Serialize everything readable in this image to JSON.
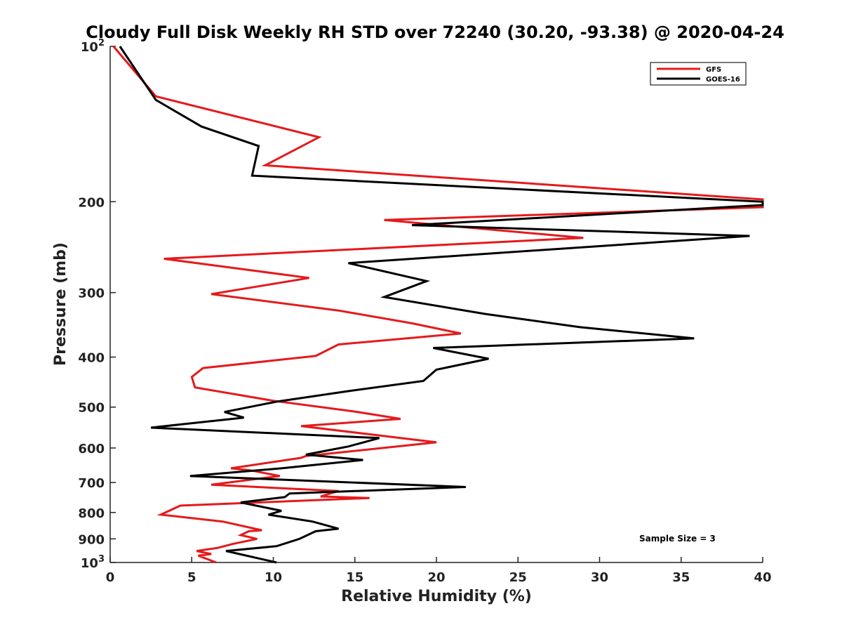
{
  "chart_data": {
    "type": "line",
    "title": "Cloudy Full Disk Weekly RH STD over 72240 (30.20, -93.38) @ 2020-04-24",
    "xlabel": "Relative Humidity (%)",
    "ylabel": "Pressure (mb)",
    "xlim": [
      0,
      40
    ],
    "ylim": [
      100,
      1000
    ],
    "yscale": "log",
    "y_reversed": true,
    "grid": false,
    "x_ticks": [
      0,
      5,
      10,
      15,
      20,
      25,
      30,
      35,
      40
    ],
    "x_tick_labels": [
      "0",
      "5",
      "10",
      "15",
      "20",
      "25",
      "30",
      "35",
      "40"
    ],
    "y_ticks": [
      100,
      200,
      300,
      400,
      500,
      600,
      700,
      800,
      900,
      1000
    ],
    "y_tick_labels": [
      {
        "base": "10",
        "sup": "2"
      },
      {
        "base": "200",
        "sup": ""
      },
      {
        "base": "300",
        "sup": ""
      },
      {
        "base": "400",
        "sup": ""
      },
      {
        "base": "500",
        "sup": ""
      },
      {
        "base": "600",
        "sup": ""
      },
      {
        "base": "700",
        "sup": ""
      },
      {
        "base": "800",
        "sup": ""
      },
      {
        "base": "900",
        "sup": ""
      },
      {
        "base": "10",
        "sup": "3"
      }
    ],
    "legend_position": "top-right",
    "annotation": "Sample Size = 3",
    "series": [
      {
        "name": "GFS",
        "color": "#e41a1c",
        "points": [
          [
            0.2,
            100
          ],
          [
            2.8,
            125
          ],
          [
            12.8,
            150
          ],
          [
            9.5,
            170
          ],
          [
            40.0,
            198
          ],
          [
            40.0,
            205
          ],
          [
            16.8,
            217
          ],
          [
            29.0,
            235
          ],
          [
            3.3,
            258
          ],
          [
            12.2,
            281
          ],
          [
            6.2,
            302
          ],
          [
            14.0,
            325
          ],
          [
            18.5,
            344
          ],
          [
            21.5,
            360
          ],
          [
            14.0,
            378
          ],
          [
            12.6,
            398
          ],
          [
            5.7,
            420
          ],
          [
            5.0,
            437
          ],
          [
            5.2,
            458
          ],
          [
            10.0,
            486
          ],
          [
            15.0,
            510
          ],
          [
            17.8,
            527
          ],
          [
            11.7,
            544
          ],
          [
            20.0,
            585
          ],
          [
            12.0,
            622
          ],
          [
            11.7,
            627
          ],
          [
            7.4,
            657
          ],
          [
            8.6,
            663
          ],
          [
            10.4,
            680
          ],
          [
            6.2,
            707
          ],
          [
            14.0,
            727
          ],
          [
            12.9,
            745
          ],
          [
            15.9,
            750
          ],
          [
            4.3,
            776
          ],
          [
            3.1,
            808
          ],
          [
            6.9,
            833
          ],
          [
            9.3,
            866
          ],
          [
            8.5,
            870
          ],
          [
            8.0,
            885
          ],
          [
            9.0,
            900
          ],
          [
            7.5,
            921
          ],
          [
            6.6,
            937
          ],
          [
            5.3,
            950
          ],
          [
            6.2,
            963
          ],
          [
            5.4,
            970
          ],
          [
            6.5,
            1000
          ]
        ]
      },
      {
        "name": "GOES-16",
        "color": "#000000",
        "points": [
          [
            0.6,
            100
          ],
          [
            2.8,
            127
          ],
          [
            5.6,
            143
          ],
          [
            9.1,
            156
          ],
          [
            8.7,
            178
          ],
          [
            40.0,
            200
          ],
          [
            40.0,
            203
          ],
          [
            18.5,
            222
          ],
          [
            39.2,
            233
          ],
          [
            14.6,
            263
          ],
          [
            19.4,
            285
          ],
          [
            16.8,
            306
          ],
          [
            23.0,
            330
          ],
          [
            28.8,
            350
          ],
          [
            35.8,
            368
          ],
          [
            19.8,
            384
          ],
          [
            23.2,
            403
          ],
          [
            20.0,
            423
          ],
          [
            19.2,
            445
          ],
          [
            14.7,
            465
          ],
          [
            10.2,
            488
          ],
          [
            7.0,
            511
          ],
          [
            8.2,
            524
          ],
          [
            2.5,
            548
          ],
          [
            16.5,
            574
          ],
          [
            14.6,
            596
          ],
          [
            12.0,
            618
          ],
          [
            15.5,
            633
          ],
          [
            10.5,
            657
          ],
          [
            4.9,
            680
          ],
          [
            21.8,
            714
          ],
          [
            11.0,
            735
          ],
          [
            10.7,
            747
          ],
          [
            8.0,
            765
          ],
          [
            10.5,
            794
          ],
          [
            9.7,
            808
          ],
          [
            12.4,
            833
          ],
          [
            14.0,
            860
          ],
          [
            12.6,
            870
          ],
          [
            11.6,
            900
          ],
          [
            10.2,
            930
          ],
          [
            7.1,
            950
          ],
          [
            10.2,
            1000
          ]
        ]
      }
    ]
  }
}
